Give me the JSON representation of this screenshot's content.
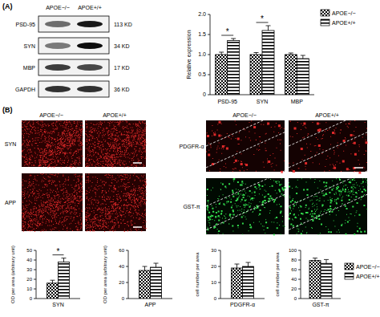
{
  "chart_data": [
    {
      "type": "bar",
      "categories": [
        "PSD-95",
        "SYN",
        "MBP"
      ],
      "y_label": "Relative expression",
      "series": [
        {
          "name": "APOE−/−",
          "color": "#000000",
          "values": [
            1.0,
            1.0,
            1.0
          ],
          "errors": [
            0.06,
            0.05,
            0.04
          ]
        },
        {
          "name": "APOE+/+",
          "color": "#000000",
          "values": [
            1.35,
            1.6,
            0.9
          ],
          "errors": [
            0.05,
            0.12,
            0.08
          ]
        }
      ],
      "ylim": [
        0,
        2
      ],
      "yticks": [
        0,
        0.5,
        {
          "value": 1,
          "label": "1.0"
        },
        1.5,
        {
          "value": 2,
          "label": "2.0"
        }
      ],
      "annotations": [
        "*",
        "*",
        null
      ],
      "legend": "right"
    },
    {
      "type": "bar",
      "categories": [
        "SYN"
      ],
      "y_label": "OD per area (arbitrary unit)",
      "series": [
        {
          "name": "APOE−/−",
          "color": "#000000",
          "values": [
            16
          ],
          "errors": [
            3
          ]
        },
        {
          "name": "APOE+/+",
          "color": "#000000",
          "values": [
            38
          ],
          "errors": [
            4
          ]
        }
      ],
      "ylim": [
        0,
        50
      ],
      "yticks": [
        0,
        10,
        20,
        30,
        40,
        50
      ],
      "annotations": [
        "*"
      ]
    },
    {
      "type": "bar",
      "categories": [
        "APP"
      ],
      "y_label": "OD per area (arbitrary unit)",
      "series": [
        {
          "name": "APOE−/−",
          "color": "#000000",
          "values": [
            35
          ],
          "errors": [
            5
          ]
        },
        {
          "name": "APOE+/+",
          "color": "#000000",
          "values": [
            39
          ],
          "errors": [
            5
          ]
        }
      ],
      "ylim": [
        0,
        60
      ],
      "yticks": [
        0,
        20,
        40,
        60
      ]
    },
    {
      "type": "bar",
      "categories": [
        "PDGFR-α"
      ],
      "y_label": "cell number per area",
      "series": [
        {
          "name": "APOE−/−",
          "color": "#000000",
          "values": [
            19
          ],
          "errors": [
            2.5
          ]
        },
        {
          "name": "APOE+/+",
          "color": "#000000",
          "values": [
            20
          ],
          "errors": [
            2.5
          ]
        }
      ],
      "ylim": [
        0,
        30
      ],
      "yticks": [
        0,
        10,
        20,
        30
      ]
    },
    {
      "type": "bar",
      "categories": [
        "GST-π"
      ],
      "y_label": "cell number per area",
      "series": [
        {
          "name": "APOE−/−",
          "color": "#000000",
          "values": [
            79
          ],
          "errors": [
            5
          ]
        },
        {
          "name": "APOE+/+",
          "color": "#000000",
          "values": [
            73
          ],
          "errors": [
            8
          ]
        }
      ],
      "ylim": [
        0,
        100
      ],
      "yticks": [
        0,
        20,
        40,
        60,
        80,
        100
      ],
      "legend": "right"
    }
  ],
  "figure": {
    "panels": [
      "(A)",
      "(B)"
    ],
    "blot": {
      "columns": [
        "APOE−/−",
        "APOE+/+"
      ],
      "rows": [
        {
          "label": "PSD-95",
          "size": "113 KD"
        },
        {
          "label": "SYN",
          "size": "34 KD"
        },
        {
          "label": "MBP",
          "size": "17 KD"
        },
        {
          "label": "GAPDH",
          "size": "36 KD"
        }
      ]
    },
    "images_left": {
      "columns": [
        "APOE−/−",
        "APOE+/+"
      ],
      "rows": [
        "SYN",
        "APP"
      ]
    },
    "images_right": {
      "columns": [
        "APOE−/−",
        "APOE+/+"
      ],
      "rows": [
        "PDGFR-α",
        "GST-π"
      ]
    }
  }
}
